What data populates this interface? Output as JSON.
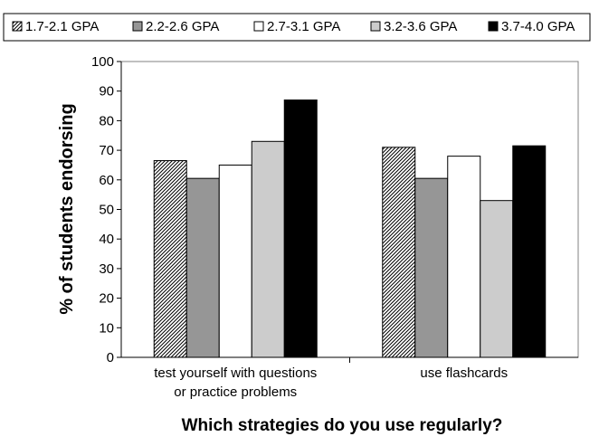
{
  "chart_data": {
    "type": "bar",
    "title": "Which strategies do you use regularly?",
    "xlabel": "",
    "ylabel": "% of students endorsing",
    "ylim": [
      0,
      100
    ],
    "yticks": [
      0,
      10,
      20,
      30,
      40,
      50,
      60,
      70,
      80,
      90,
      100
    ],
    "grid": false,
    "legend_position": "top",
    "categories": [
      [
        "test yourself with questions",
        "or practice problems"
      ],
      [
        "use flashcards"
      ]
    ],
    "series": [
      {
        "name": "1.7-2.1 GPA",
        "fill": "hatch",
        "color": "#000000",
        "values": [
          66.5,
          71
        ]
      },
      {
        "name": "2.2-2.6 GPA",
        "fill": "solid",
        "color": "#969696",
        "values": [
          60.5,
          60.5
        ]
      },
      {
        "name": "2.7-3.1 GPA",
        "fill": "solid",
        "color": "#ffffff",
        "values": [
          65,
          68
        ]
      },
      {
        "name": "3.2-3.6 GPA",
        "fill": "solid",
        "color": "#cccccc",
        "values": [
          73,
          53
        ]
      },
      {
        "name": "3.7-4.0 GPA",
        "fill": "solid",
        "color": "#000000",
        "values": [
          87,
          71.5
        ]
      }
    ]
  }
}
